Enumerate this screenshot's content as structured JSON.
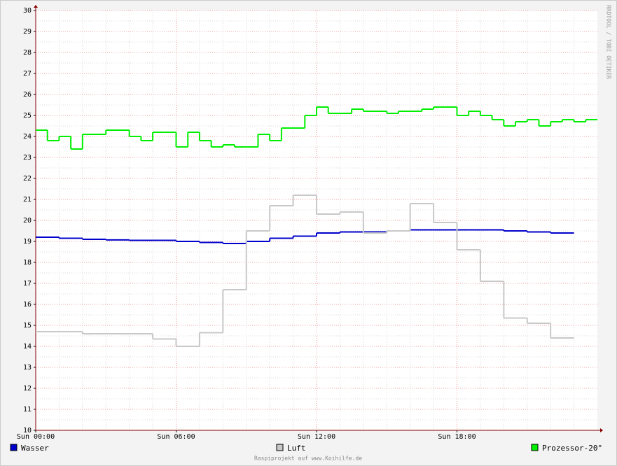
{
  "chart_data": {
    "type": "step-line",
    "xticks": [
      {
        "value": 0,
        "label": "Sun 00:00"
      },
      {
        "value": 6,
        "label": "Sun 06:00"
      },
      {
        "value": 12,
        "label": "Sun 12:00"
      },
      {
        "value": 18,
        "label": "Sun 18:00"
      }
    ],
    "xlim": [
      0,
      24
    ],
    "ylim": [
      10,
      30
    ],
    "yticks": [
      10,
      11,
      12,
      13,
      14,
      15,
      16,
      17,
      18,
      19,
      20,
      21,
      22,
      23,
      24,
      25,
      26,
      27,
      28,
      29,
      30
    ],
    "grid": true,
    "series": [
      {
        "name": "Wasser",
        "color": "#0000cc",
        "x": [
          0,
          1,
          2,
          3,
          4,
          5,
          6,
          7,
          8,
          9,
          10,
          11,
          12,
          13,
          14,
          15,
          16,
          17,
          18,
          19,
          20,
          21,
          22
        ],
        "values": [
          19.2,
          19.15,
          19.1,
          19.07,
          19.05,
          19.05,
          19.0,
          18.95,
          18.9,
          19.0,
          19.15,
          19.25,
          19.4,
          19.45,
          19.45,
          19.5,
          19.55,
          19.55,
          19.55,
          19.55,
          19.5,
          19.45,
          19.4
        ]
      },
      {
        "name": "Luft",
        "color": "#c8c8c8",
        "x": [
          0,
          1,
          2,
          3,
          4,
          5,
          6,
          7,
          8,
          9,
          10,
          11,
          12,
          13,
          14,
          15,
          16,
          17,
          18,
          19,
          20,
          21,
          22
        ],
        "values": [
          14.7,
          14.7,
          14.6,
          14.6,
          14.6,
          14.35,
          14.0,
          14.65,
          16.7,
          19.5,
          20.7,
          21.2,
          20.3,
          20.4,
          19.4,
          19.5,
          20.8,
          19.9,
          18.6,
          17.1,
          15.35,
          15.1,
          14.4
        ]
      },
      {
        "name": "Prozessor-20°",
        "color": "#00ee00",
        "x": [
          0,
          0.5,
          1,
          1.5,
          2,
          2.5,
          3,
          3.5,
          4,
          4.5,
          5,
          5.5,
          6,
          6.5,
          7,
          7.5,
          8,
          8.5,
          9,
          9.5,
          10,
          10.5,
          11,
          11.5,
          12,
          12.5,
          13,
          13.5,
          14,
          14.5,
          15,
          15.5,
          16,
          16.5,
          17,
          17.5,
          18,
          18.5,
          19,
          19.5,
          20,
          20.5,
          21,
          21.5,
          22,
          22.5,
          23,
          23.5
        ],
        "values": [
          24.3,
          23.8,
          24.0,
          23.4,
          24.1,
          24.1,
          24.3,
          24.3,
          24.0,
          23.8,
          24.2,
          24.2,
          23.5,
          24.2,
          23.8,
          23.5,
          23.6,
          23.5,
          23.5,
          24.1,
          23.8,
          24.4,
          24.4,
          25.0,
          25.4,
          25.1,
          25.1,
          25.3,
          25.2,
          25.2,
          25.1,
          25.2,
          25.2,
          25.3,
          25.4,
          25.4,
          25.0,
          25.2,
          25.0,
          24.8,
          24.5,
          24.7,
          24.8,
          24.5,
          24.7,
          24.8,
          24.7,
          24.8
        ]
      }
    ]
  },
  "side_label": "RRDTOOL / TOBI OETIKER",
  "footer": "Raspiprojekt auf www.Koihilfe.de"
}
